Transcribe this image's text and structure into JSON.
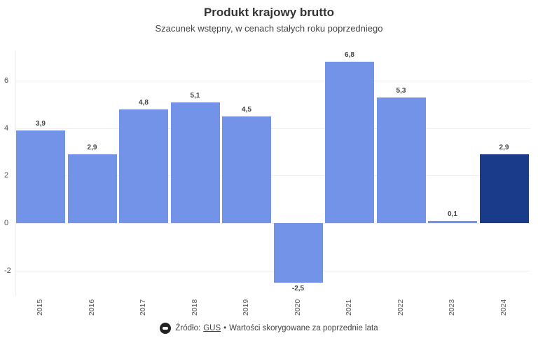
{
  "header": {
    "title": "Produkt krajowy brutto",
    "subtitle": "Szacunek wstępny, w cenach stałych roku poprzedniego"
  },
  "footer": {
    "logo_icon": "tvn24-logo-icon",
    "source_prefix": "Źródło:",
    "source_link": "GUS",
    "separator": "•",
    "note": "Wartości skorygowane za poprzednie lata"
  },
  "colors": {
    "bar_default": "#7393e8",
    "bar_highlight": "#1a3a8a",
    "gridline": "#eeeeee"
  },
  "chart_data": {
    "type": "bar",
    "title": "Produkt krajowy brutto",
    "subtitle": "Szacunek wstępny, w cenach stałych roku poprzedniego",
    "xlabel": "",
    "ylabel": "",
    "categories": [
      "2015",
      "2016",
      "2017",
      "2018",
      "2019",
      "2020",
      "2021",
      "2022",
      "2023",
      "2024"
    ],
    "values": [
      3.9,
      2.9,
      4.8,
      5.1,
      4.5,
      -2.5,
      6.8,
      5.3,
      0.1,
      2.9
    ],
    "value_labels": [
      "3,9",
      "2,9",
      "4,8",
      "5,1",
      "4,5",
      "-2,5",
      "6,8",
      "5,3",
      "0,1",
      "2,9"
    ],
    "highlighted_category": "2024",
    "yticks": [
      -2,
      0,
      2,
      4,
      6
    ],
    "ytick_labels": [
      "-2",
      "0",
      "2",
      "4",
      "6"
    ],
    "ylim": [
      -3,
      7.3
    ],
    "grid": true,
    "legend": null,
    "annotations": [
      "Źródło: GUS • Wartości skorygowane za poprzednie lata"
    ]
  }
}
